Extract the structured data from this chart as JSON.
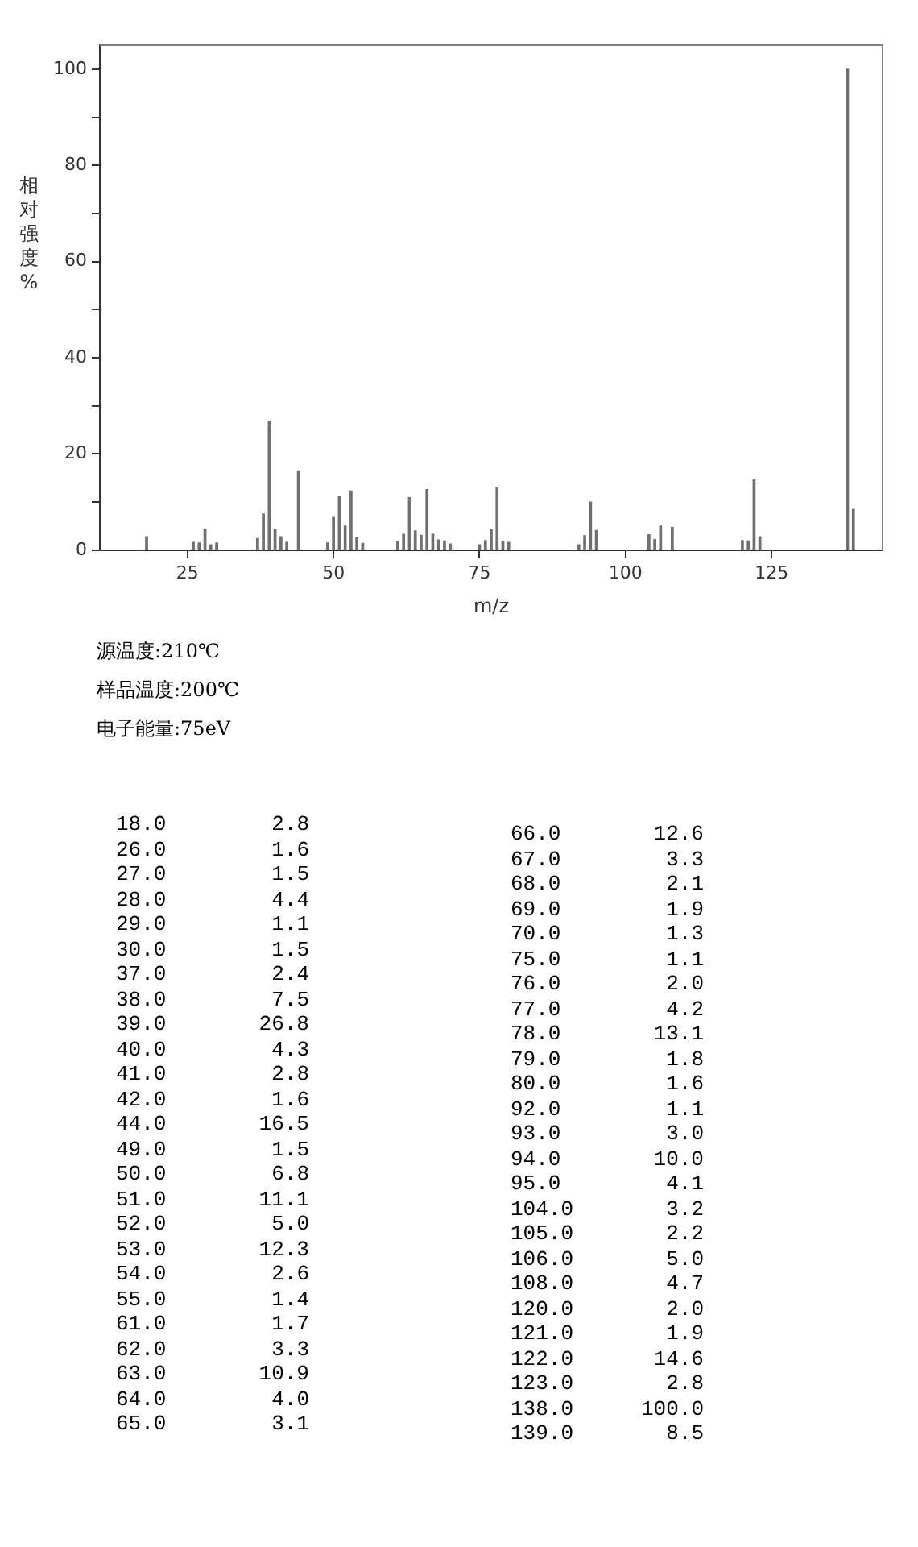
{
  "chart_data": [
    {
      "type": "bar",
      "xlabel": "m/z",
      "ylabel": "相对强度%",
      "x": [
        18,
        26,
        27,
        28,
        29,
        30,
        37,
        38,
        39,
        40,
        41,
        42,
        44,
        49,
        50,
        51,
        52,
        53,
        54,
        55,
        61,
        62,
        63,
        64,
        65,
        66,
        67,
        68,
        69,
        70,
        75,
        76,
        77,
        78,
        79,
        80,
        92,
        93,
        94,
        95,
        104,
        105,
        106,
        108,
        120,
        121,
        122,
        123,
        138,
        139
      ],
      "values": [
        2.8,
        1.6,
        1.5,
        4.4,
        1.1,
        1.5,
        2.4,
        7.5,
        26.8,
        4.3,
        2.8,
        1.6,
        16.5,
        1.5,
        6.8,
        11.1,
        5.0,
        12.3,
        2.6,
        1.4,
        1.7,
        3.3,
        10.9,
        4.0,
        3.1,
        12.6,
        3.3,
        2.1,
        1.9,
        1.3,
        1.1,
        2.0,
        4.2,
        13.1,
        1.8,
        1.6,
        1.1,
        3.0,
        10.0,
        4.1,
        3.2,
        2.2,
        5.0,
        4.7,
        2.0,
        1.9,
        14.6,
        2.8,
        100.0,
        8.5
      ],
      "color": "#707070",
      "grid": false,
      "legend": false,
      "xlim": [
        10,
        144
      ],
      "xticks": [
        25,
        50,
        75,
        100,
        125
      ],
      "ylim": [
        0,
        105
      ],
      "yticks": [
        0,
        {
          "value": 10,
          "label": null
        },
        20,
        {
          "value": 30,
          "label": null
        },
        40,
        {
          "value": 50,
          "label": null
        },
        60,
        {
          "value": 70,
          "label": null
        },
        80,
        {
          "value": 90,
          "label": null
        },
        100
      ],
      "annotations": [
        "源温度:210℃",
        "样品温度:200℃",
        "电子能量:75eV"
      ]
    },
    {
      "type": "other",
      "categories": [
        "18.0",
        "26.0",
        "27.0",
        "28.0",
        "29.0",
        "30.0",
        "37.0",
        "38.0",
        "39.0",
        "40.0",
        "41.0",
        "42.0",
        "44.0",
        "49.0",
        "50.0",
        "51.0",
        "52.0",
        "53.0",
        "54.0",
        "55.0",
        "61.0",
        "62.0",
        "63.0",
        "64.0",
        "65.0",
        "66.0",
        "67.0",
        "68.0",
        "69.0",
        "70.0",
        "75.0",
        "76.0",
        "77.0",
        "78.0",
        "79.0",
        "80.0",
        "92.0",
        "93.0",
        "94.0",
        "95.0",
        "104.0",
        "105.0",
        "106.0",
        "108.0",
        "120.0",
        "121.0",
        "122.0",
        "123.0",
        "138.0",
        "139.0"
      ],
      "values": [
        2.8,
        1.6,
        1.5,
        4.4,
        1.1,
        1.5,
        2.4,
        7.5,
        26.8,
        4.3,
        2.8,
        1.6,
        16.5,
        1.5,
        6.8,
        11.1,
        5.0,
        12.3,
        2.6,
        1.4,
        1.7,
        3.3,
        10.9,
        4.0,
        3.1,
        12.6,
        3.3,
        2.1,
        1.9,
        1.3,
        1.1,
        2.0,
        4.2,
        13.1,
        1.8,
        1.6,
        1.1,
        3.0,
        10.0,
        4.1,
        3.2,
        2.2,
        5.0,
        4.7,
        2.0,
        1.9,
        14.6,
        2.8,
        100.0,
        8.5
      ],
      "value_labels": [
        "2.8",
        "1.6",
        "1.5",
        "4.4",
        "1.1",
        "1.5",
        "2.4",
        "7.5",
        "26.8",
        "4.3",
        "2.8",
        "1.6",
        "16.5",
        "1.5",
        "6.8",
        "11.1",
        "5.0",
        "12.3",
        "2.6",
        "1.4",
        "1.7",
        "3.3",
        "10.9",
        "4.0",
        "3.1",
        "12.6",
        "3.3",
        "2.1",
        "1.9",
        "1.3",
        "1.1",
        "2.0",
        "4.2",
        "13.1",
        "1.8",
        "1.6",
        "1.1",
        "3.0",
        "10.0",
        "4.1",
        "3.2",
        "2.2",
        "5.0",
        "4.7",
        "2.0",
        "1.9",
        "14.6",
        "2.8",
        "100.0",
        "8.5"
      ]
    }
  ]
}
